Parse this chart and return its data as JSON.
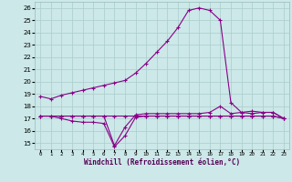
{
  "xlabel": "Windchill (Refroidissement éolien,°C)",
  "bg_color": "#cce8e8",
  "line_color": "#880088",
  "grid_color": "#aacccc",
  "hours": [
    0,
    1,
    2,
    3,
    4,
    5,
    6,
    7,
    8,
    9,
    10,
    11,
    12,
    13,
    14,
    15,
    16,
    17,
    18,
    19,
    20,
    21,
    22,
    23
  ],
  "line1": [
    18.8,
    18.6,
    18.9,
    19.1,
    19.3,
    19.5,
    19.7,
    19.9,
    20.1,
    20.7,
    21.5,
    22.4,
    23.3,
    24.4,
    25.8,
    26.0,
    25.8,
    25.0,
    18.3,
    17.5,
    17.4,
    17.5,
    17.5,
    17.0
  ],
  "line2": [
    17.2,
    17.2,
    17.2,
    17.2,
    17.2,
    17.2,
    17.2,
    14.8,
    16.3,
    17.3,
    17.4,
    17.4,
    17.4,
    17.4,
    17.4,
    17.4,
    17.5,
    18.0,
    17.4,
    17.5,
    17.6,
    17.5,
    17.5,
    17.0
  ],
  "line3": [
    17.2,
    17.2,
    17.0,
    16.8,
    16.7,
    16.7,
    16.6,
    14.7,
    15.6,
    17.1,
    17.2,
    17.2,
    17.2,
    17.2,
    17.2,
    17.2,
    17.2,
    17.2,
    17.2,
    17.2,
    17.2,
    17.2,
    17.2,
    17.0
  ],
  "line4": [
    17.2,
    17.2,
    17.2,
    17.2,
    17.2,
    17.2,
    17.2,
    17.2,
    17.2,
    17.2,
    17.2,
    17.2,
    17.2,
    17.2,
    17.2,
    17.2,
    17.2,
    17.2,
    17.2,
    17.2,
    17.2,
    17.2,
    17.2,
    17.0
  ],
  "ylim_min": 14.5,
  "ylim_max": 26.5,
  "yticks": [
    15,
    16,
    17,
    18,
    19,
    20,
    21,
    22,
    23,
    24,
    25,
    26
  ],
  "marker": "+",
  "markersize": 3,
  "linewidth": 0.8
}
